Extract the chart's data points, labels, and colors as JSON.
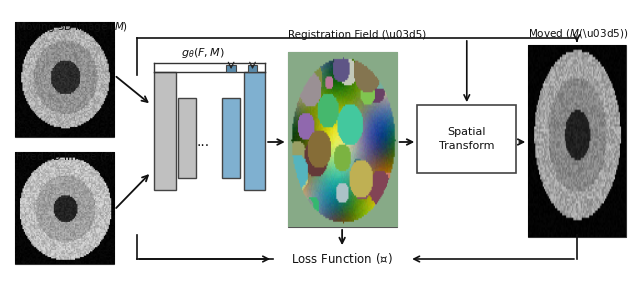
{
  "bg_color": "#ffffff",
  "text_color": "#111111",
  "gray_bar_color": "#c0c0c0",
  "blue_bar_color": "#7fb0d0",
  "box_edge_color": "#444444",
  "arrow_color": "#111111",
  "spatial_box_color": "#ffffff",
  "reg_field_bg": "#8aad8a",
  "label_moving": "$\\mathbf{M}$oving 3D Image ($\\it{M}$)",
  "label_fixed": "Fixed 3D Image ($\\it{F}$)",
  "label_moved": "Moved ($\\it{M}$(\\u03d5))",
  "label_reg_field": "Registration Field (\\u03d5)",
  "label_g_theta": "$g_\\theta(F,M)$",
  "label_spatial": "Spatial\nTransform",
  "label_loss": "Loss Function ($\\mathcal{L}$)"
}
